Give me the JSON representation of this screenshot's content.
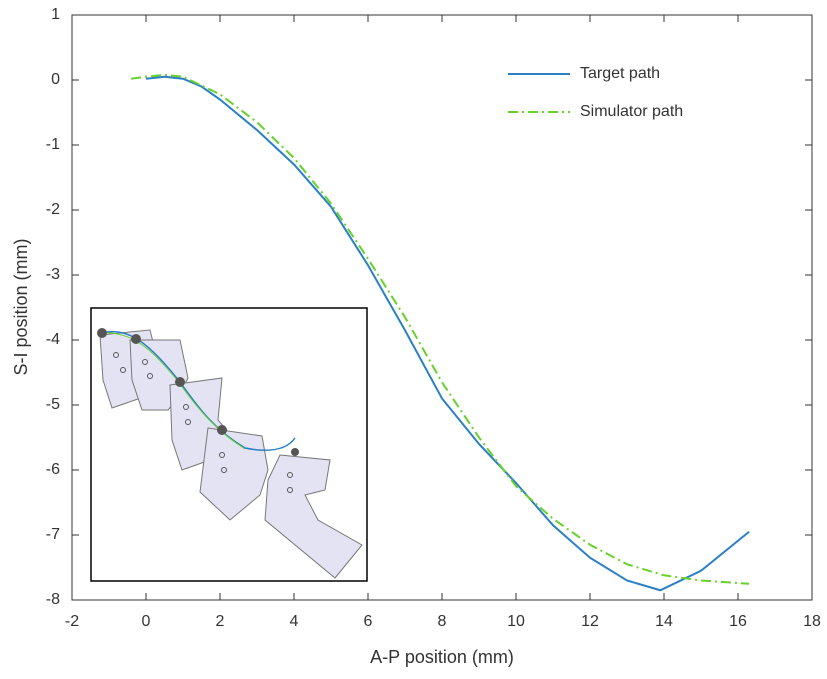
{
  "chart_data": {
    "type": "line",
    "xlabel": "A-P position (mm)",
    "ylabel": "S-I position (mm)",
    "xlim": [
      -2,
      18
    ],
    "xticks": [
      -2,
      0,
      2,
      4,
      6,
      8,
      10,
      12,
      14,
      16,
      18
    ],
    "ylim": [
      -8,
      1
    ],
    "yticks": [
      -8,
      -7,
      -6,
      -5,
      -4,
      -3,
      -2,
      -1,
      0,
      1
    ],
    "legend": "upper right",
    "series": [
      {
        "name": "Target path",
        "color": "#2a7fc7",
        "style": "solid",
        "x": [
          0,
          0.5,
          1,
          1.5,
          2,
          3,
          4,
          5,
          6,
          7,
          8,
          9,
          10,
          11,
          12,
          13,
          13.9,
          15,
          16.3
        ],
        "values": [
          0.02,
          0.05,
          0.02,
          -0.1,
          -0.3,
          -0.77,
          -1.3,
          -1.95,
          -2.85,
          -3.85,
          -4.9,
          -5.6,
          -6.2,
          -6.85,
          -7.35,
          -7.7,
          -7.85,
          -7.55,
          -6.95
        ]
      },
      {
        "name": "Simulator path",
        "color": "#66d22a",
        "style": "dashdot",
        "x": [
          -0.4,
          0,
          0.5,
          1,
          2,
          3,
          4,
          5,
          6,
          7,
          8,
          9,
          10,
          11,
          12,
          13,
          14,
          15,
          16.3
        ],
        "values": [
          0.02,
          0.05,
          0.08,
          0.05,
          -0.22,
          -0.65,
          -1.2,
          -1.9,
          -2.75,
          -3.65,
          -4.65,
          -5.5,
          -6.25,
          -6.75,
          -7.15,
          -7.45,
          -7.62,
          -7.7,
          -7.75
        ]
      }
    ]
  }
}
